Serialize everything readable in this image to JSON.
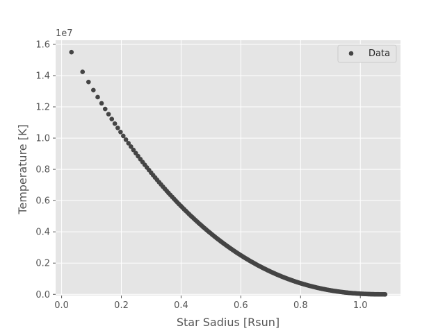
{
  "chart_data": {
    "type": "scatter",
    "xlabel": "Star Sadius [Rsun]",
    "ylabel": "Temperature [K]",
    "y_offset_text": "1e7",
    "y_scale_factor": 10000000,
    "xlim": [
      -0.02,
      1.1345
    ],
    "ylim": [
      -0.0077,
      1.6264
    ],
    "xticks": [
      0.0,
      0.2,
      0.4,
      0.6,
      0.8,
      1.0
    ],
    "xtick_labels": [
      "0.0",
      "0.2",
      "0.4",
      "0.6",
      "0.8",
      "1.0"
    ],
    "yticks": [
      0.0,
      0.2,
      0.4,
      0.6,
      0.8,
      1.0,
      1.2,
      1.4,
      1.6
    ],
    "ytick_labels": [
      "0.0",
      "0.2",
      "0.4",
      "0.6",
      "0.8",
      "1.0",
      "1.2",
      "1.4",
      "1.6"
    ],
    "grid": true,
    "style": "ggplot",
    "legend": {
      "position": "top-right",
      "entries": [
        "Data"
      ]
    },
    "series": [
      {
        "name": "Data",
        "color": "#444444",
        "model": {
          "x_start": 0.033,
          "x_end": 1.083,
          "count": 220,
          "y_at_start": 1.55,
          "exponent": 2.35
        }
      }
    ]
  },
  "colors": {
    "axes_background": "#e5e5e5",
    "grid": "#ffffff",
    "text": "#555555",
    "marker": "#444444",
    "legend_background": "#e5e5e5",
    "legend_border": "#cccccc"
  }
}
